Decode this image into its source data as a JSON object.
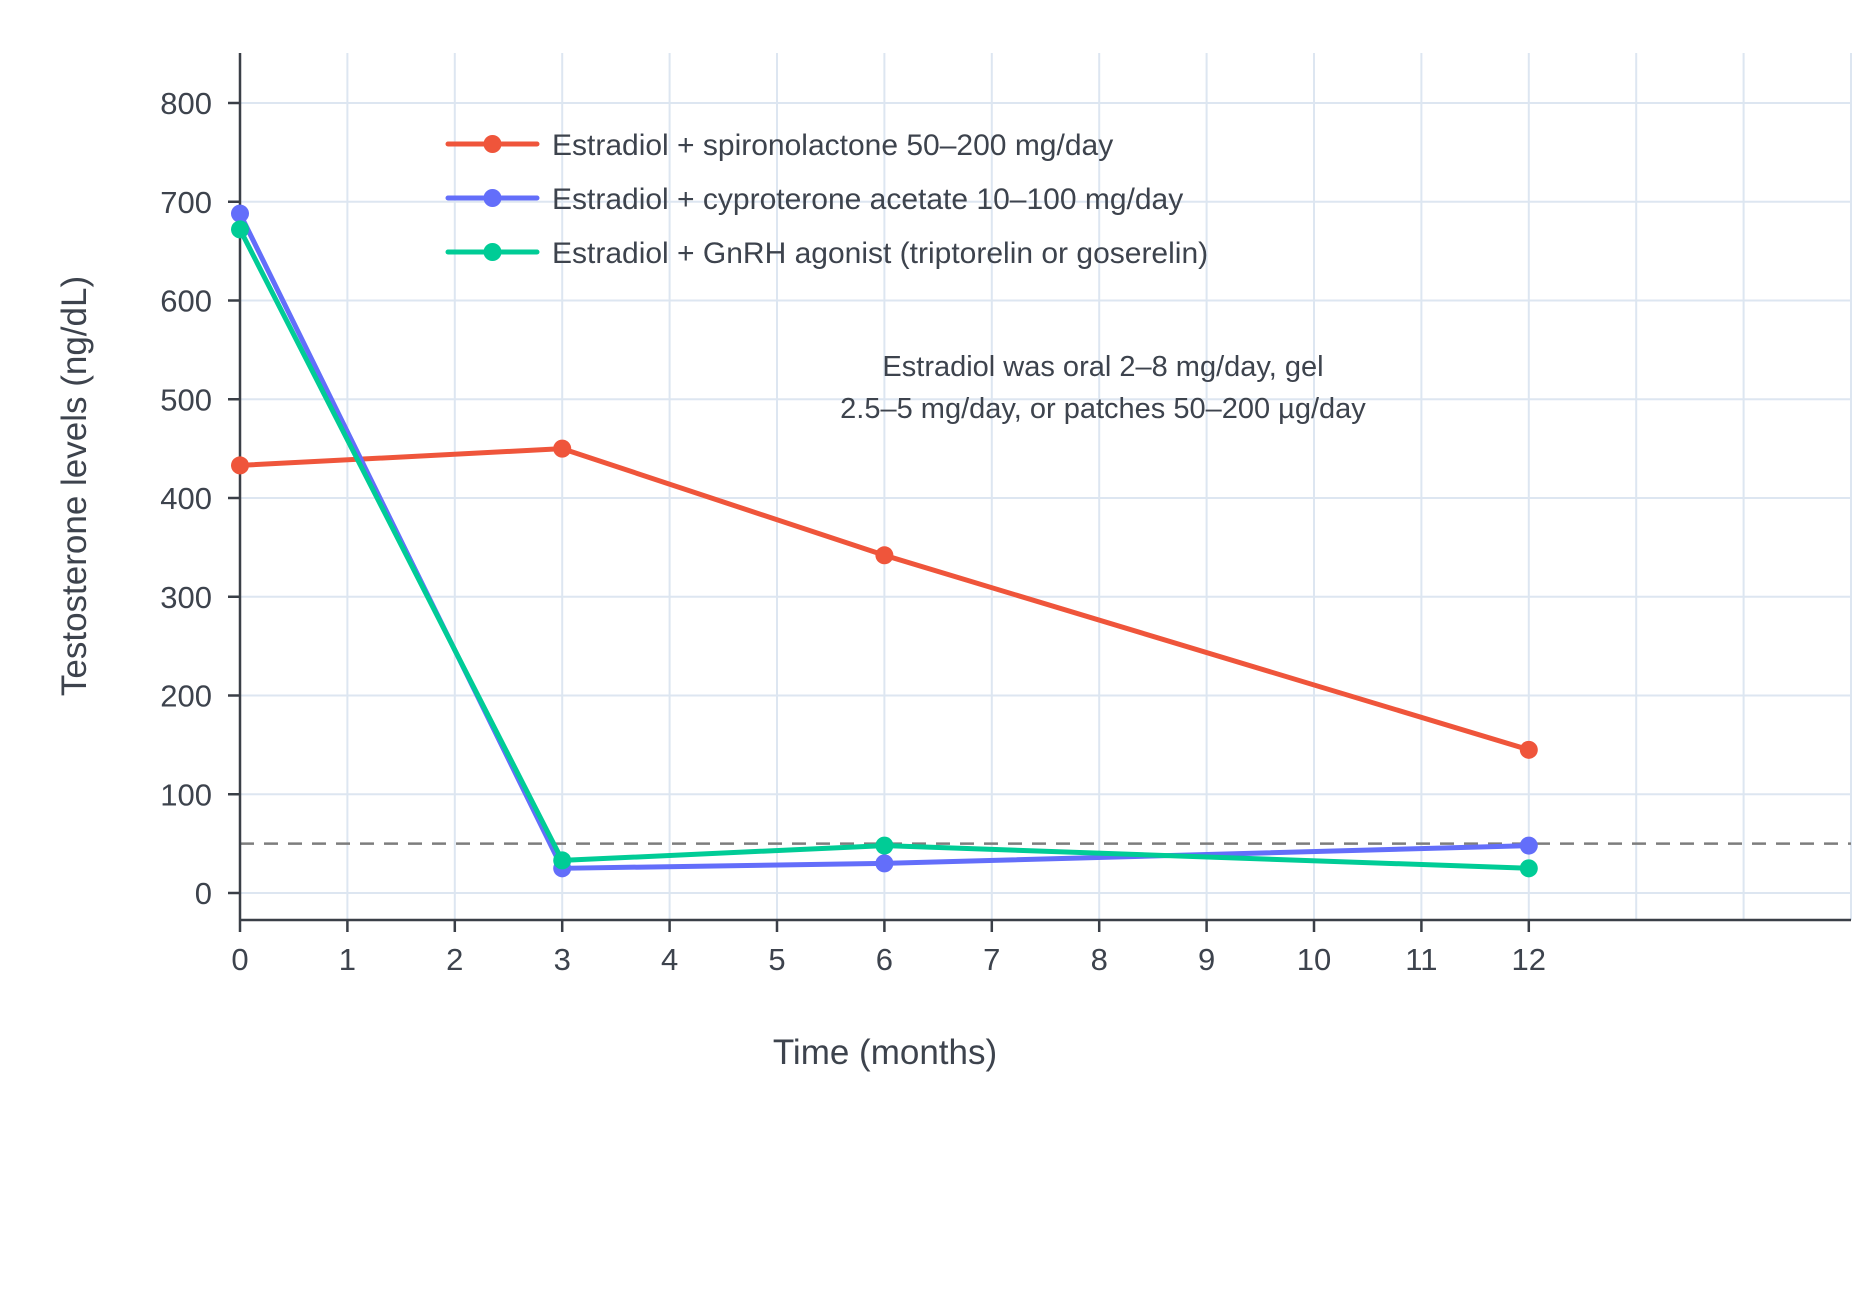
{
  "chart_data": {
    "type": "line",
    "title": "",
    "xlabel": "Time (months)",
    "ylabel": "Testosterone levels (ng/dL)",
    "x": [
      0,
      3,
      6,
      12
    ],
    "x_ticks": [
      0,
      1,
      2,
      3,
      4,
      5,
      6,
      7,
      8,
      9,
      10,
      11,
      12
    ],
    "y_ticks": [
      0,
      100,
      200,
      300,
      400,
      500,
      600,
      700,
      800
    ],
    "xlim": [
      0,
      15
    ],
    "ylim": [
      0,
      850
    ],
    "grid": true,
    "legend_position": "top-left-inside",
    "series": [
      {
        "name": "Estradiol + spironolactone 50–200 mg/day",
        "color": "#EF553B",
        "values": [
          433,
          450,
          342,
          145
        ]
      },
      {
        "name": "Estradiol + cyproterone acetate 10–100 mg/day",
        "color": "#636EFA",
        "values": [
          688,
          25,
          30,
          48
        ]
      },
      {
        "name": "Estradiol + GnRH agonist (triptorelin or goserelin)",
        "color": "#00CC96",
        "values": [
          672,
          33,
          48,
          25
        ]
      }
    ],
    "threshold_line": {
      "value": 50,
      "style": "dashed",
      "color": "#7d7d7d"
    },
    "annotation": {
      "lines": [
        "Estradiol was oral 2–8 mg/day, gel",
        "2.5–5 mg/day, or patches 50–200 µg/day"
      ]
    },
    "colors": {
      "grid": "#dde6f1",
      "axis": "#3a3f47",
      "text": "#3d434d",
      "background": "#ffffff"
    }
  }
}
